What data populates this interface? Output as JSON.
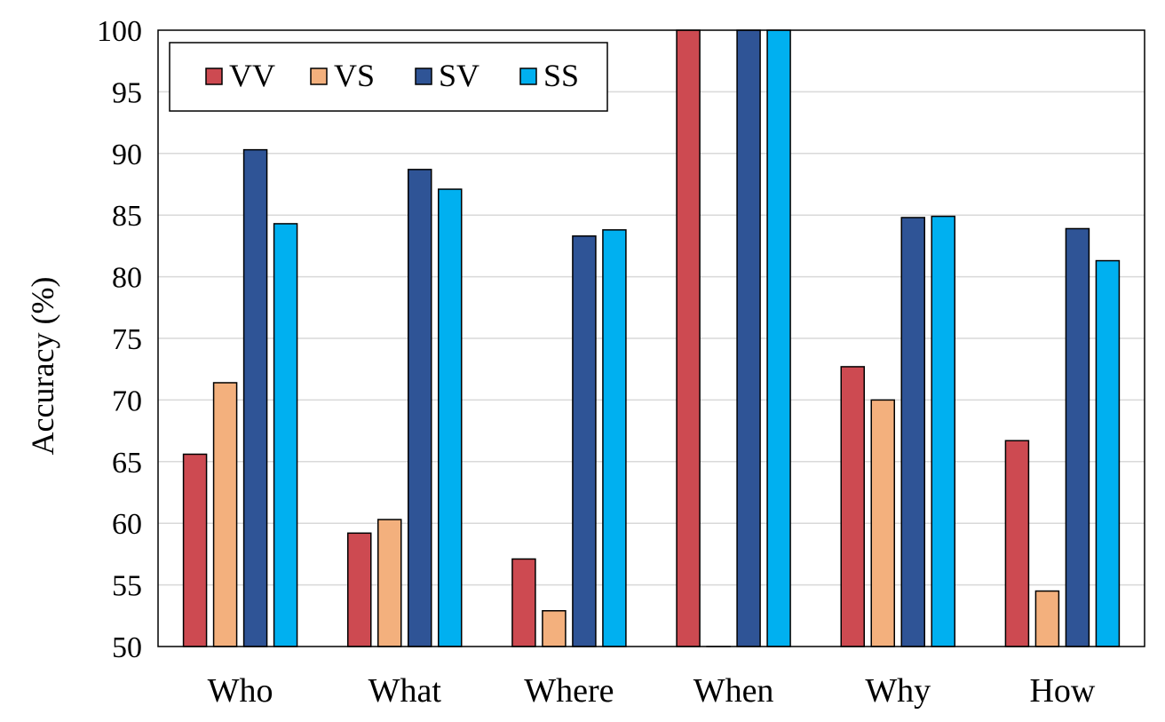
{
  "chart_data": {
    "type": "bar",
    "title": "",
    "xlabel": "",
    "ylabel": "Accuracy (%)",
    "ylim": [
      50,
      100
    ],
    "yticks": [
      50,
      55,
      60,
      65,
      70,
      75,
      80,
      85,
      90,
      95,
      100
    ],
    "grid": true,
    "legend_position": "top-left",
    "categories": [
      "Who",
      "What",
      "Where",
      "When",
      "Why",
      "How"
    ],
    "series": [
      {
        "name": "VV",
        "color": "#CD4A51",
        "values": [
          65.6,
          59.2,
          57.1,
          100,
          72.7,
          66.7
        ]
      },
      {
        "name": "VS",
        "color": "#F3B07D",
        "values": [
          71.4,
          60.3,
          52.9,
          50,
          70.0,
          54.5
        ]
      },
      {
        "name": "SV",
        "color": "#2F5496",
        "values": [
          90.3,
          88.7,
          83.3,
          100,
          84.8,
          83.9
        ]
      },
      {
        "name": "SS",
        "color": "#00B0F0",
        "values": [
          84.3,
          87.1,
          83.8,
          100,
          84.9,
          81.3
        ]
      }
    ]
  }
}
